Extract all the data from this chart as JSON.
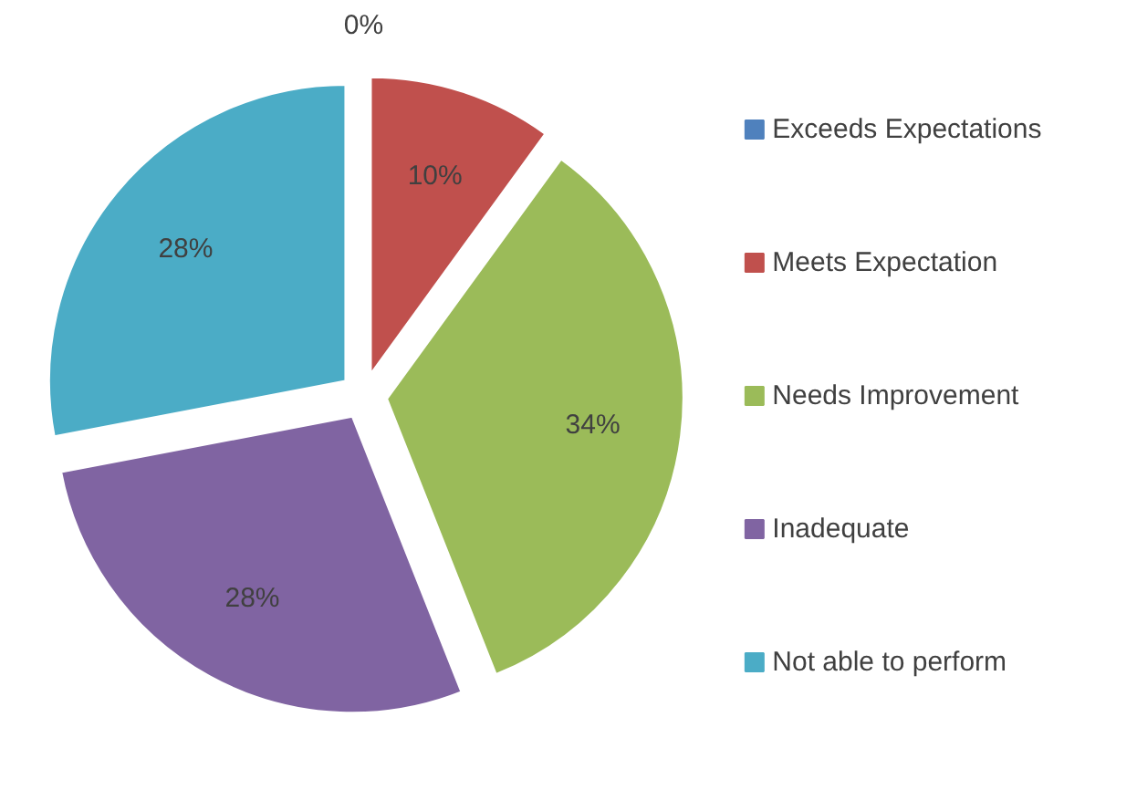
{
  "chart_data": {
    "type": "pie",
    "categories": [
      "Exceeds Expectations",
      "Meets Expectation",
      "Needs Improvement",
      "Inadequate",
      "Not able to perform"
    ],
    "values": [
      0,
      10,
      34,
      28,
      28
    ],
    "colors": [
      "#4f81bd",
      "#c0504d",
      "#9bbb59",
      "#8064a2",
      "#4bacc6"
    ],
    "value_labels": [
      "0%",
      "10%",
      "34%",
      "28%",
      "28%"
    ],
    "legend": "right"
  }
}
